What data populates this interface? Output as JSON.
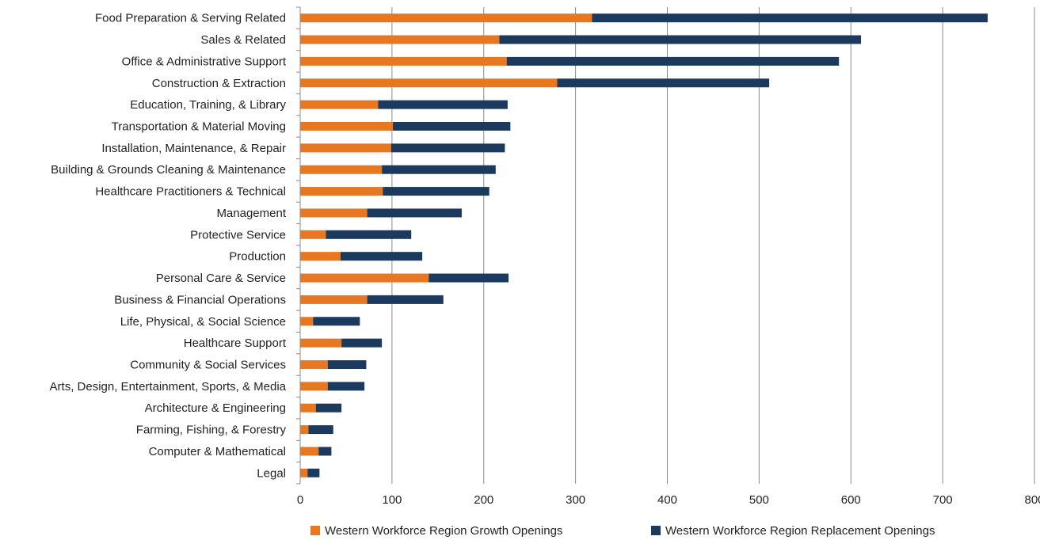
{
  "chart_data": {
    "type": "bar",
    "orientation": "horizontal",
    "stacked": true,
    "title": "",
    "xlabel": "",
    "ylabel": "",
    "xlim": [
      0,
      800
    ],
    "x_ticks": [
      "0",
      "100",
      "200",
      "300",
      "400",
      "500",
      "600",
      "700",
      "800"
    ],
    "grid": true,
    "legend_position": "bottom",
    "categories": [
      "Food Preparation & Serving Related",
      "Sales & Related",
      "Office & Administrative Support",
      "Construction & Extraction",
      "Education, Training, & Library",
      "Transportation & Material Moving",
      "Installation, Maintenance, & Repair",
      "Building & Grounds Cleaning & Maintenance",
      "Healthcare Practitioners & Technical",
      "Management",
      "Protective Service",
      "Production",
      "Personal Care & Service",
      "Business & Financial Operations",
      "Life, Physical, & Social Science",
      "Healthcare Support",
      "Community & Social Services",
      "Arts, Design, Entertainment, Sports, & Media",
      "Architecture & Engineering",
      "Farming, Fishing, & Forestry",
      "Computer & Mathematical",
      "Legal"
    ],
    "series": [
      {
        "name": "Western Workforce Region Growth Openings",
        "color": "#E87722",
        "values": [
          318,
          217,
          225,
          280,
          85,
          101,
          99,
          89,
          90,
          73,
          28,
          44,
          140,
          73,
          14,
          45,
          30,
          30,
          17,
          9,
          20,
          8
        ]
      },
      {
        "name": "Western Workforce Region Replacement Openings",
        "color": "#1B3A5E",
        "values": [
          431,
          394,
          362,
          231,
          141,
          128,
          124,
          124,
          116,
          103,
          93,
          89,
          87,
          83,
          51,
          44,
          42,
          40,
          28,
          27,
          14,
          13
        ]
      }
    ]
  }
}
